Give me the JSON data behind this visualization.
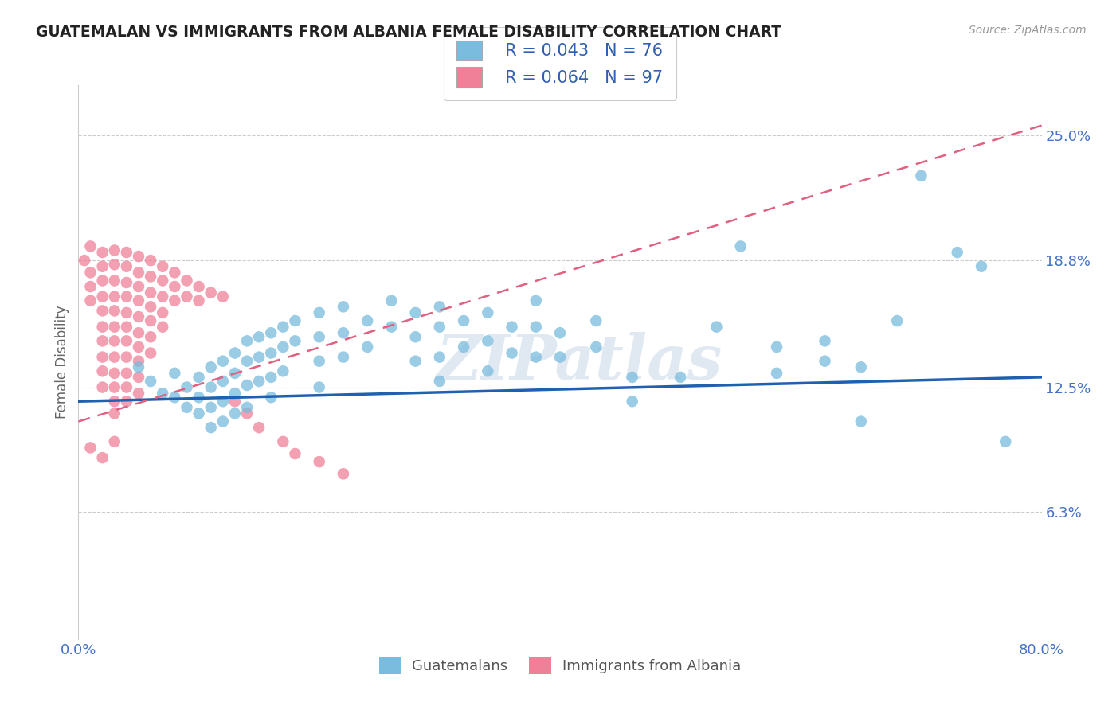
{
  "title": "GUATEMALAN VS IMMIGRANTS FROM ALBANIA FEMALE DISABILITY CORRELATION CHART",
  "source": "Source: ZipAtlas.com",
  "ylabel": "Female Disability",
  "x_min": 0.0,
  "x_max": 0.8,
  "y_min": 0.0,
  "y_max": 0.275,
  "y_ticks": [
    0.063,
    0.125,
    0.188,
    0.25
  ],
  "y_tick_labels": [
    "6.3%",
    "12.5%",
    "18.8%",
    "25.0%"
  ],
  "x_ticks": [
    0.0,
    0.1,
    0.2,
    0.3,
    0.4,
    0.5,
    0.6,
    0.7,
    0.8
  ],
  "x_tick_labels": [
    "0.0%",
    "",
    "",
    "",
    "",
    "",
    "",
    "",
    "80.0%"
  ],
  "legend_labels": [
    "Guatemalans",
    "Immigrants from Albania"
  ],
  "blue_color": "#7abcde",
  "pink_color": "#f08098",
  "trend_blue_color": "#2060b0",
  "trend_pink_color": "#e06080",
  "blue_R": 0.043,
  "blue_N": 76,
  "pink_R": 0.064,
  "pink_N": 97,
  "watermark": "ZIPatlas",
  "blue_trend_x": [
    0.0,
    0.8
  ],
  "blue_trend_y": [
    0.118,
    0.13
  ],
  "pink_trend_x": [
    0.0,
    0.8
  ],
  "pink_trend_y": [
    0.108,
    0.255
  ],
  "blue_scatter": [
    [
      0.05,
      0.135
    ],
    [
      0.06,
      0.128
    ],
    [
      0.07,
      0.122
    ],
    [
      0.08,
      0.132
    ],
    [
      0.08,
      0.12
    ],
    [
      0.09,
      0.125
    ],
    [
      0.09,
      0.115
    ],
    [
      0.1,
      0.13
    ],
    [
      0.1,
      0.12
    ],
    [
      0.1,
      0.112
    ],
    [
      0.11,
      0.135
    ],
    [
      0.11,
      0.125
    ],
    [
      0.11,
      0.115
    ],
    [
      0.11,
      0.105
    ],
    [
      0.12,
      0.138
    ],
    [
      0.12,
      0.128
    ],
    [
      0.12,
      0.118
    ],
    [
      0.12,
      0.108
    ],
    [
      0.13,
      0.142
    ],
    [
      0.13,
      0.132
    ],
    [
      0.13,
      0.122
    ],
    [
      0.13,
      0.112
    ],
    [
      0.14,
      0.148
    ],
    [
      0.14,
      0.138
    ],
    [
      0.14,
      0.126
    ],
    [
      0.14,
      0.115
    ],
    [
      0.15,
      0.15
    ],
    [
      0.15,
      0.14
    ],
    [
      0.15,
      0.128
    ],
    [
      0.16,
      0.152
    ],
    [
      0.16,
      0.142
    ],
    [
      0.16,
      0.13
    ],
    [
      0.16,
      0.12
    ],
    [
      0.17,
      0.155
    ],
    [
      0.17,
      0.145
    ],
    [
      0.17,
      0.133
    ],
    [
      0.18,
      0.158
    ],
    [
      0.18,
      0.148
    ],
    [
      0.2,
      0.162
    ],
    [
      0.2,
      0.15
    ],
    [
      0.2,
      0.138
    ],
    [
      0.2,
      0.125
    ],
    [
      0.22,
      0.165
    ],
    [
      0.22,
      0.152
    ],
    [
      0.22,
      0.14
    ],
    [
      0.24,
      0.158
    ],
    [
      0.24,
      0.145
    ],
    [
      0.26,
      0.168
    ],
    [
      0.26,
      0.155
    ],
    [
      0.28,
      0.162
    ],
    [
      0.28,
      0.15
    ],
    [
      0.28,
      0.138
    ],
    [
      0.3,
      0.165
    ],
    [
      0.3,
      0.155
    ],
    [
      0.3,
      0.14
    ],
    [
      0.3,
      0.128
    ],
    [
      0.32,
      0.158
    ],
    [
      0.32,
      0.145
    ],
    [
      0.34,
      0.162
    ],
    [
      0.34,
      0.148
    ],
    [
      0.34,
      0.133
    ],
    [
      0.36,
      0.155
    ],
    [
      0.36,
      0.142
    ],
    [
      0.38,
      0.168
    ],
    [
      0.38,
      0.155
    ],
    [
      0.38,
      0.14
    ],
    [
      0.4,
      0.152
    ],
    [
      0.4,
      0.14
    ],
    [
      0.43,
      0.158
    ],
    [
      0.43,
      0.145
    ],
    [
      0.46,
      0.13
    ],
    [
      0.46,
      0.118
    ],
    [
      0.5,
      0.13
    ],
    [
      0.53,
      0.155
    ],
    [
      0.55,
      0.195
    ],
    [
      0.58,
      0.145
    ],
    [
      0.58,
      0.132
    ],
    [
      0.62,
      0.148
    ],
    [
      0.62,
      0.138
    ],
    [
      0.65,
      0.135
    ],
    [
      0.65,
      0.108
    ],
    [
      0.68,
      0.158
    ],
    [
      0.7,
      0.23
    ],
    [
      0.73,
      0.192
    ],
    [
      0.75,
      0.185
    ],
    [
      0.77,
      0.098
    ]
  ],
  "pink_scatter": [
    [
      0.005,
      0.188
    ],
    [
      0.01,
      0.195
    ],
    [
      0.01,
      0.182
    ],
    [
      0.01,
      0.175
    ],
    [
      0.01,
      0.168
    ],
    [
      0.02,
      0.192
    ],
    [
      0.02,
      0.185
    ],
    [
      0.02,
      0.178
    ],
    [
      0.02,
      0.17
    ],
    [
      0.02,
      0.163
    ],
    [
      0.02,
      0.155
    ],
    [
      0.02,
      0.148
    ],
    [
      0.02,
      0.14
    ],
    [
      0.02,
      0.133
    ],
    [
      0.02,
      0.125
    ],
    [
      0.03,
      0.193
    ],
    [
      0.03,
      0.186
    ],
    [
      0.03,
      0.178
    ],
    [
      0.03,
      0.17
    ],
    [
      0.03,
      0.163
    ],
    [
      0.03,
      0.155
    ],
    [
      0.03,
      0.148
    ],
    [
      0.03,
      0.14
    ],
    [
      0.03,
      0.132
    ],
    [
      0.03,
      0.125
    ],
    [
      0.03,
      0.118
    ],
    [
      0.03,
      0.112
    ],
    [
      0.04,
      0.192
    ],
    [
      0.04,
      0.185
    ],
    [
      0.04,
      0.177
    ],
    [
      0.04,
      0.17
    ],
    [
      0.04,
      0.162
    ],
    [
      0.04,
      0.155
    ],
    [
      0.04,
      0.148
    ],
    [
      0.04,
      0.14
    ],
    [
      0.04,
      0.132
    ],
    [
      0.04,
      0.125
    ],
    [
      0.04,
      0.118
    ],
    [
      0.05,
      0.19
    ],
    [
      0.05,
      0.182
    ],
    [
      0.05,
      0.175
    ],
    [
      0.05,
      0.168
    ],
    [
      0.05,
      0.16
    ],
    [
      0.05,
      0.152
    ],
    [
      0.05,
      0.145
    ],
    [
      0.05,
      0.138
    ],
    [
      0.05,
      0.13
    ],
    [
      0.05,
      0.122
    ],
    [
      0.06,
      0.188
    ],
    [
      0.06,
      0.18
    ],
    [
      0.06,
      0.172
    ],
    [
      0.06,
      0.165
    ],
    [
      0.06,
      0.158
    ],
    [
      0.06,
      0.15
    ],
    [
      0.06,
      0.142
    ],
    [
      0.07,
      0.185
    ],
    [
      0.07,
      0.178
    ],
    [
      0.07,
      0.17
    ],
    [
      0.07,
      0.162
    ],
    [
      0.07,
      0.155
    ],
    [
      0.08,
      0.182
    ],
    [
      0.08,
      0.175
    ],
    [
      0.08,
      0.168
    ],
    [
      0.09,
      0.178
    ],
    [
      0.09,
      0.17
    ],
    [
      0.1,
      0.175
    ],
    [
      0.1,
      0.168
    ],
    [
      0.11,
      0.172
    ],
    [
      0.12,
      0.17
    ],
    [
      0.13,
      0.118
    ],
    [
      0.14,
      0.112
    ],
    [
      0.15,
      0.105
    ],
    [
      0.17,
      0.098
    ],
    [
      0.18,
      0.092
    ],
    [
      0.2,
      0.088
    ],
    [
      0.22,
      0.082
    ],
    [
      0.01,
      0.095
    ],
    [
      0.02,
      0.09
    ],
    [
      0.03,
      0.098
    ]
  ]
}
